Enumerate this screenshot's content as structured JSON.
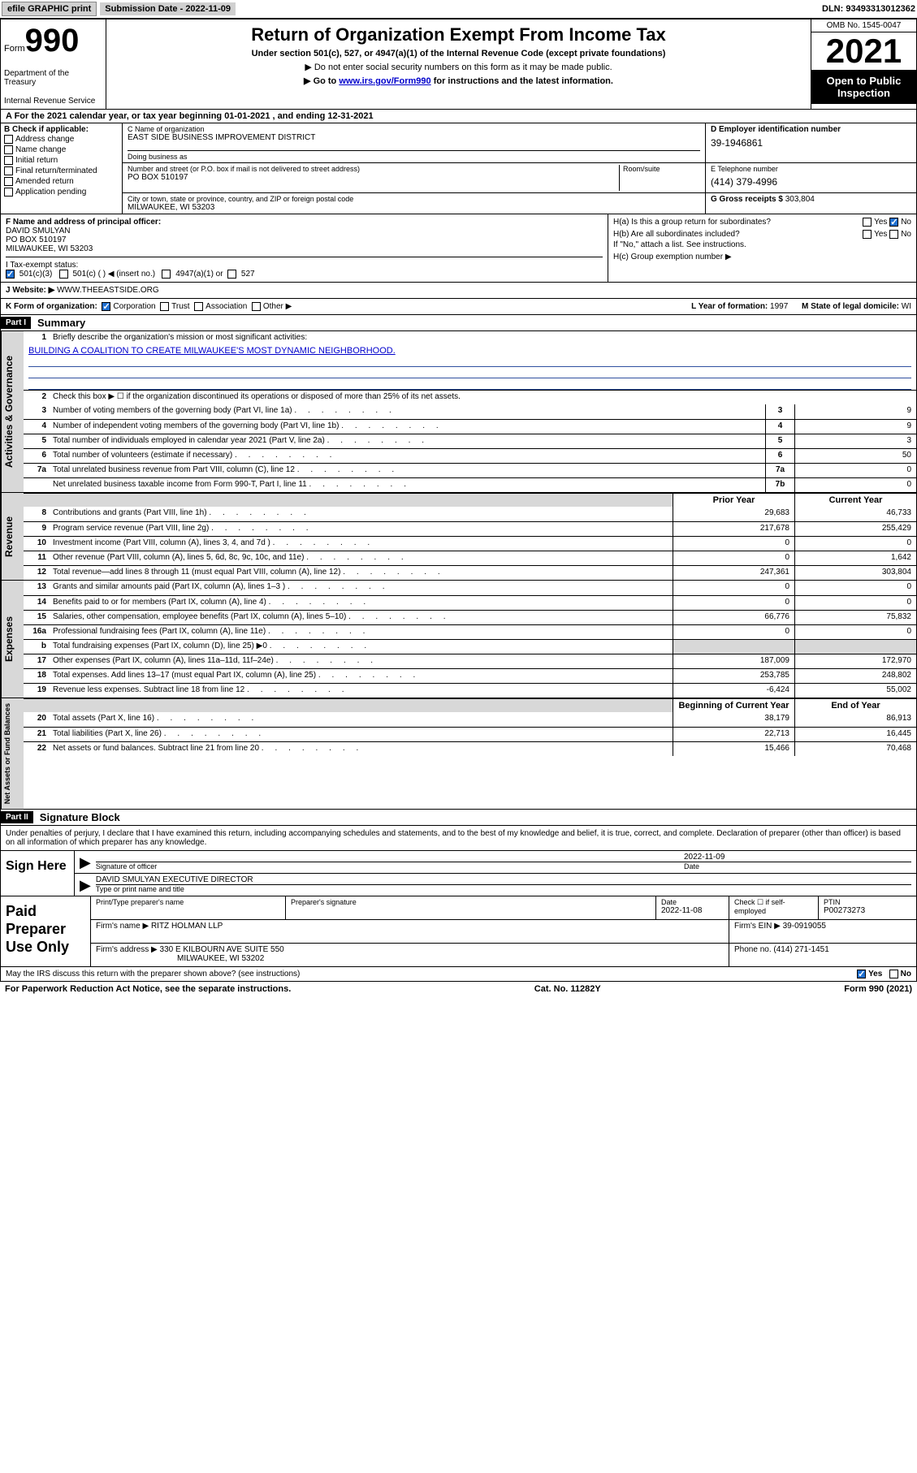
{
  "topbar": {
    "efile": "efile GRAPHIC print",
    "submission_label": "Submission Date - 2022-11-09",
    "dln": "DLN: 93493313012362"
  },
  "header": {
    "form_word": "Form",
    "form_num": "990",
    "dept": "Department of the Treasury",
    "irs": "Internal Revenue Service",
    "title": "Return of Organization Exempt From Income Tax",
    "sub1": "Under section 501(c), 527, or 4947(a)(1) of the Internal Revenue Code (except private foundations)",
    "sub2": "▶ Do not enter social security numbers on this form as it may be made public.",
    "sub3_pre": "▶ Go to ",
    "sub3_link": "www.irs.gov/Form990",
    "sub3_post": " for instructions and the latest information.",
    "omb": "OMB No. 1545-0047",
    "year": "2021",
    "open": "Open to Public Inspection"
  },
  "row_a": "A For the 2021 calendar year, or tax year beginning 01-01-2021   , and ending 12-31-2021",
  "col_b": {
    "hdr": "B Check if applicable:",
    "items": [
      "Address change",
      "Name change",
      "Initial return",
      "Final return/terminated",
      "Amended return",
      "Application pending"
    ]
  },
  "col_c": {
    "name_lbl": "C Name of organization",
    "name": "EAST SIDE BUSINESS IMPROVEMENT DISTRICT",
    "dba_lbl": "Doing business as",
    "addr_lbl": "Number and street (or P.O. box if mail is not delivered to street address)",
    "room_lbl": "Room/suite",
    "addr": "PO BOX 510197",
    "city_lbl": "City or town, state or province, country, and ZIP or foreign postal code",
    "city": "MILWAUKEE, WI  53203"
  },
  "col_d": {
    "lbl": "D Employer identification number",
    "val": "39-1946861"
  },
  "col_e": {
    "lbl": "E Telephone number",
    "val": "(414) 379-4996"
  },
  "col_g": {
    "lbl": "G Gross receipts $",
    "val": "303,804"
  },
  "block_f": {
    "lbl": "F Name and address of principal officer:",
    "name": "DAVID SMULYAN",
    "addr1": "PO BOX 510197",
    "addr2": "MILWAUKEE, WI  53203"
  },
  "block_h": {
    "ha": "H(a)  Is this a group return for subordinates?",
    "hb": "H(b)  Are all subordinates included?",
    "hb_note": "If \"No,\" attach a list. See instructions.",
    "hc": "H(c)  Group exemption number ▶",
    "yes": "Yes",
    "no": "No"
  },
  "row_i": {
    "lbl": "I   Tax-exempt status:",
    "o1": "501(c)(3)",
    "o2": "501(c) (  ) ◀ (insert no.)",
    "o3": "4947(a)(1) or",
    "o4": "527"
  },
  "row_j": {
    "lbl": "J   Website: ▶",
    "val": "WWW.THEEASTSIDE.ORG"
  },
  "row_k": {
    "lbl": "K Form of organization:",
    "o1": "Corporation",
    "o2": "Trust",
    "o3": "Association",
    "o4": "Other ▶"
  },
  "row_l": {
    "lbl": "L Year of formation:",
    "val": "1997"
  },
  "row_m": {
    "lbl": "M State of legal domicile:",
    "val": "WI"
  },
  "part1": {
    "hdr": "Part I",
    "title": "Summary",
    "q1": "Briefly describe the organization's mission or most significant activities:",
    "mission": "BUILDING A COALITION TO CREATE MILWAUKEE'S MOST DYNAMIC NEIGHBORHOOD.",
    "q2": "Check this box ▶ ☐  if the organization discontinued its operations or disposed of more than 25% of its net assets.",
    "lines_gov": [
      {
        "n": "3",
        "d": "Number of voting members of the governing body (Part VI, line 1a)",
        "box": "3",
        "v": "9"
      },
      {
        "n": "4",
        "d": "Number of independent voting members of the governing body (Part VI, line 1b)",
        "box": "4",
        "v": "9"
      },
      {
        "n": "5",
        "d": "Total number of individuals employed in calendar year 2021 (Part V, line 2a)",
        "box": "5",
        "v": "3"
      },
      {
        "n": "6",
        "d": "Total number of volunteers (estimate if necessary)",
        "box": "6",
        "v": "50"
      },
      {
        "n": "7a",
        "d": "Total unrelated business revenue from Part VIII, column (C), line 12",
        "box": "7a",
        "v": "0"
      },
      {
        "n": "",
        "d": "Net unrelated business taxable income from Form 990-T, Part I, line 11",
        "box": "7b",
        "v": "0"
      }
    ],
    "prior_hdr": "Prior Year",
    "curr_hdr": "Current Year",
    "lines_rev": [
      {
        "n": "8",
        "d": "Contributions and grants (Part VIII, line 1h)",
        "p": "29,683",
        "c": "46,733"
      },
      {
        "n": "9",
        "d": "Program service revenue (Part VIII, line 2g)",
        "p": "217,678",
        "c": "255,429"
      },
      {
        "n": "10",
        "d": "Investment income (Part VIII, column (A), lines 3, 4, and 7d )",
        "p": "0",
        "c": "0"
      },
      {
        "n": "11",
        "d": "Other revenue (Part VIII, column (A), lines 5, 6d, 8c, 9c, 10c, and 11e)",
        "p": "0",
        "c": "1,642"
      },
      {
        "n": "12",
        "d": "Total revenue—add lines 8 through 11 (must equal Part VIII, column (A), line 12)",
        "p": "247,361",
        "c": "303,804"
      }
    ],
    "lines_exp": [
      {
        "n": "13",
        "d": "Grants and similar amounts paid (Part IX, column (A), lines 1–3 )",
        "p": "0",
        "c": "0"
      },
      {
        "n": "14",
        "d": "Benefits paid to or for members (Part IX, column (A), line 4)",
        "p": "0",
        "c": "0"
      },
      {
        "n": "15",
        "d": "Salaries, other compensation, employee benefits (Part IX, column (A), lines 5–10)",
        "p": "66,776",
        "c": "75,832"
      },
      {
        "n": "16a",
        "d": "Professional fundraising fees (Part IX, column (A), line 11e)",
        "p": "0",
        "c": "0"
      },
      {
        "n": "b",
        "d": "Total fundraising expenses (Part IX, column (D), line 25) ▶0",
        "p": "",
        "c": "",
        "shade": true
      },
      {
        "n": "17",
        "d": "Other expenses (Part IX, column (A), lines 11a–11d, 11f–24e)",
        "p": "187,009",
        "c": "172,970"
      },
      {
        "n": "18",
        "d": "Total expenses. Add lines 13–17 (must equal Part IX, column (A), line 25)",
        "p": "253,785",
        "c": "248,802"
      },
      {
        "n": "19",
        "d": "Revenue less expenses. Subtract line 18 from line 12",
        "p": "-6,424",
        "c": "55,002"
      }
    ],
    "begin_hdr": "Beginning of Current Year",
    "end_hdr": "End of Year",
    "lines_net": [
      {
        "n": "20",
        "d": "Total assets (Part X, line 16)",
        "p": "38,179",
        "c": "86,913"
      },
      {
        "n": "21",
        "d": "Total liabilities (Part X, line 26)",
        "p": "22,713",
        "c": "16,445"
      },
      {
        "n": "22",
        "d": "Net assets or fund balances. Subtract line 21 from line 20",
        "p": "15,466",
        "c": "70,468"
      }
    ],
    "vtab_gov": "Activities & Governance",
    "vtab_rev": "Revenue",
    "vtab_exp": "Expenses",
    "vtab_net": "Net Assets or Fund Balances"
  },
  "part2": {
    "hdr": "Part II",
    "title": "Signature Block",
    "decl": "Under penalties of perjury, I declare that I have examined this return, including accompanying schedules and statements, and to the best of my knowledge and belief, it is true, correct, and complete. Declaration of preparer (other than officer) is based on all information of which preparer has any knowledge.",
    "sign_here": "Sign Here",
    "sig_officer": "Signature of officer",
    "date": "Date",
    "date_val": "2022-11-09",
    "name_title": "DAVID SMULYAN  EXECUTIVE DIRECTOR",
    "name_title_lbl": "Type or print name and title",
    "paid": "Paid Preparer Use Only",
    "prep_name_lbl": "Print/Type preparer's name",
    "prep_sig_lbl": "Preparer's signature",
    "prep_date_lbl": "Date",
    "prep_date": "2022-11-08",
    "self_emp": "Check ☐ if self-employed",
    "ptin_lbl": "PTIN",
    "ptin": "P00273273",
    "firm_name_lbl": "Firm's name    ▶",
    "firm_name": "RITZ HOLMAN LLP",
    "firm_ein_lbl": "Firm's EIN ▶",
    "firm_ein": "39-0919055",
    "firm_addr_lbl": "Firm's address ▶",
    "firm_addr1": "330 E KILBOURN AVE SUITE 550",
    "firm_addr2": "MILWAUKEE, WI  53202",
    "phone_lbl": "Phone no.",
    "phone": "(414) 271-1451"
  },
  "footer": {
    "discuss": "May the IRS discuss this return with the preparer shown above? (see instructions)",
    "yes": "Yes",
    "no": "No",
    "paperwork": "For Paperwork Reduction Act Notice, see the separate instructions.",
    "cat": "Cat. No. 11282Y",
    "formref": "Form 990 (2021)"
  }
}
